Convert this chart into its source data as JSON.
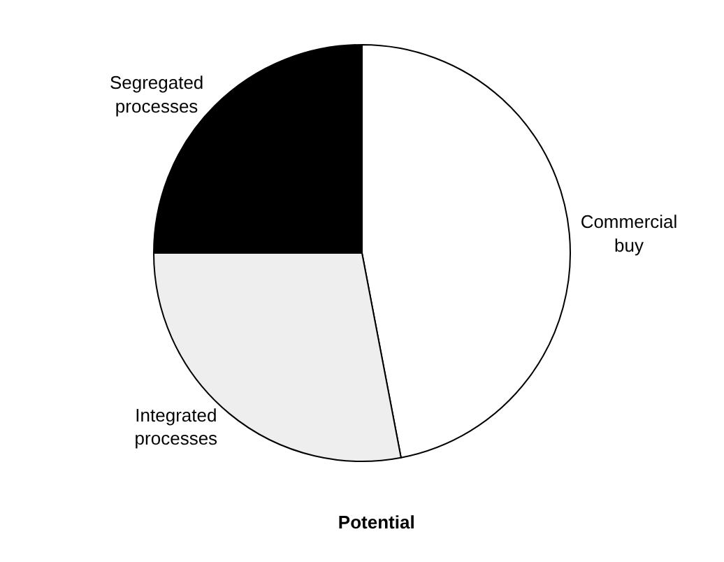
{
  "chart_data": {
    "type": "pie",
    "title": "Potential",
    "categories": [
      "Commercial buy",
      "Integrated processes",
      "Segregated processes"
    ],
    "values": [
      47,
      28,
      25
    ],
    "colors": [
      "#ffffff",
      "#eeeeee",
      "#000000"
    ],
    "legend": false
  }
}
